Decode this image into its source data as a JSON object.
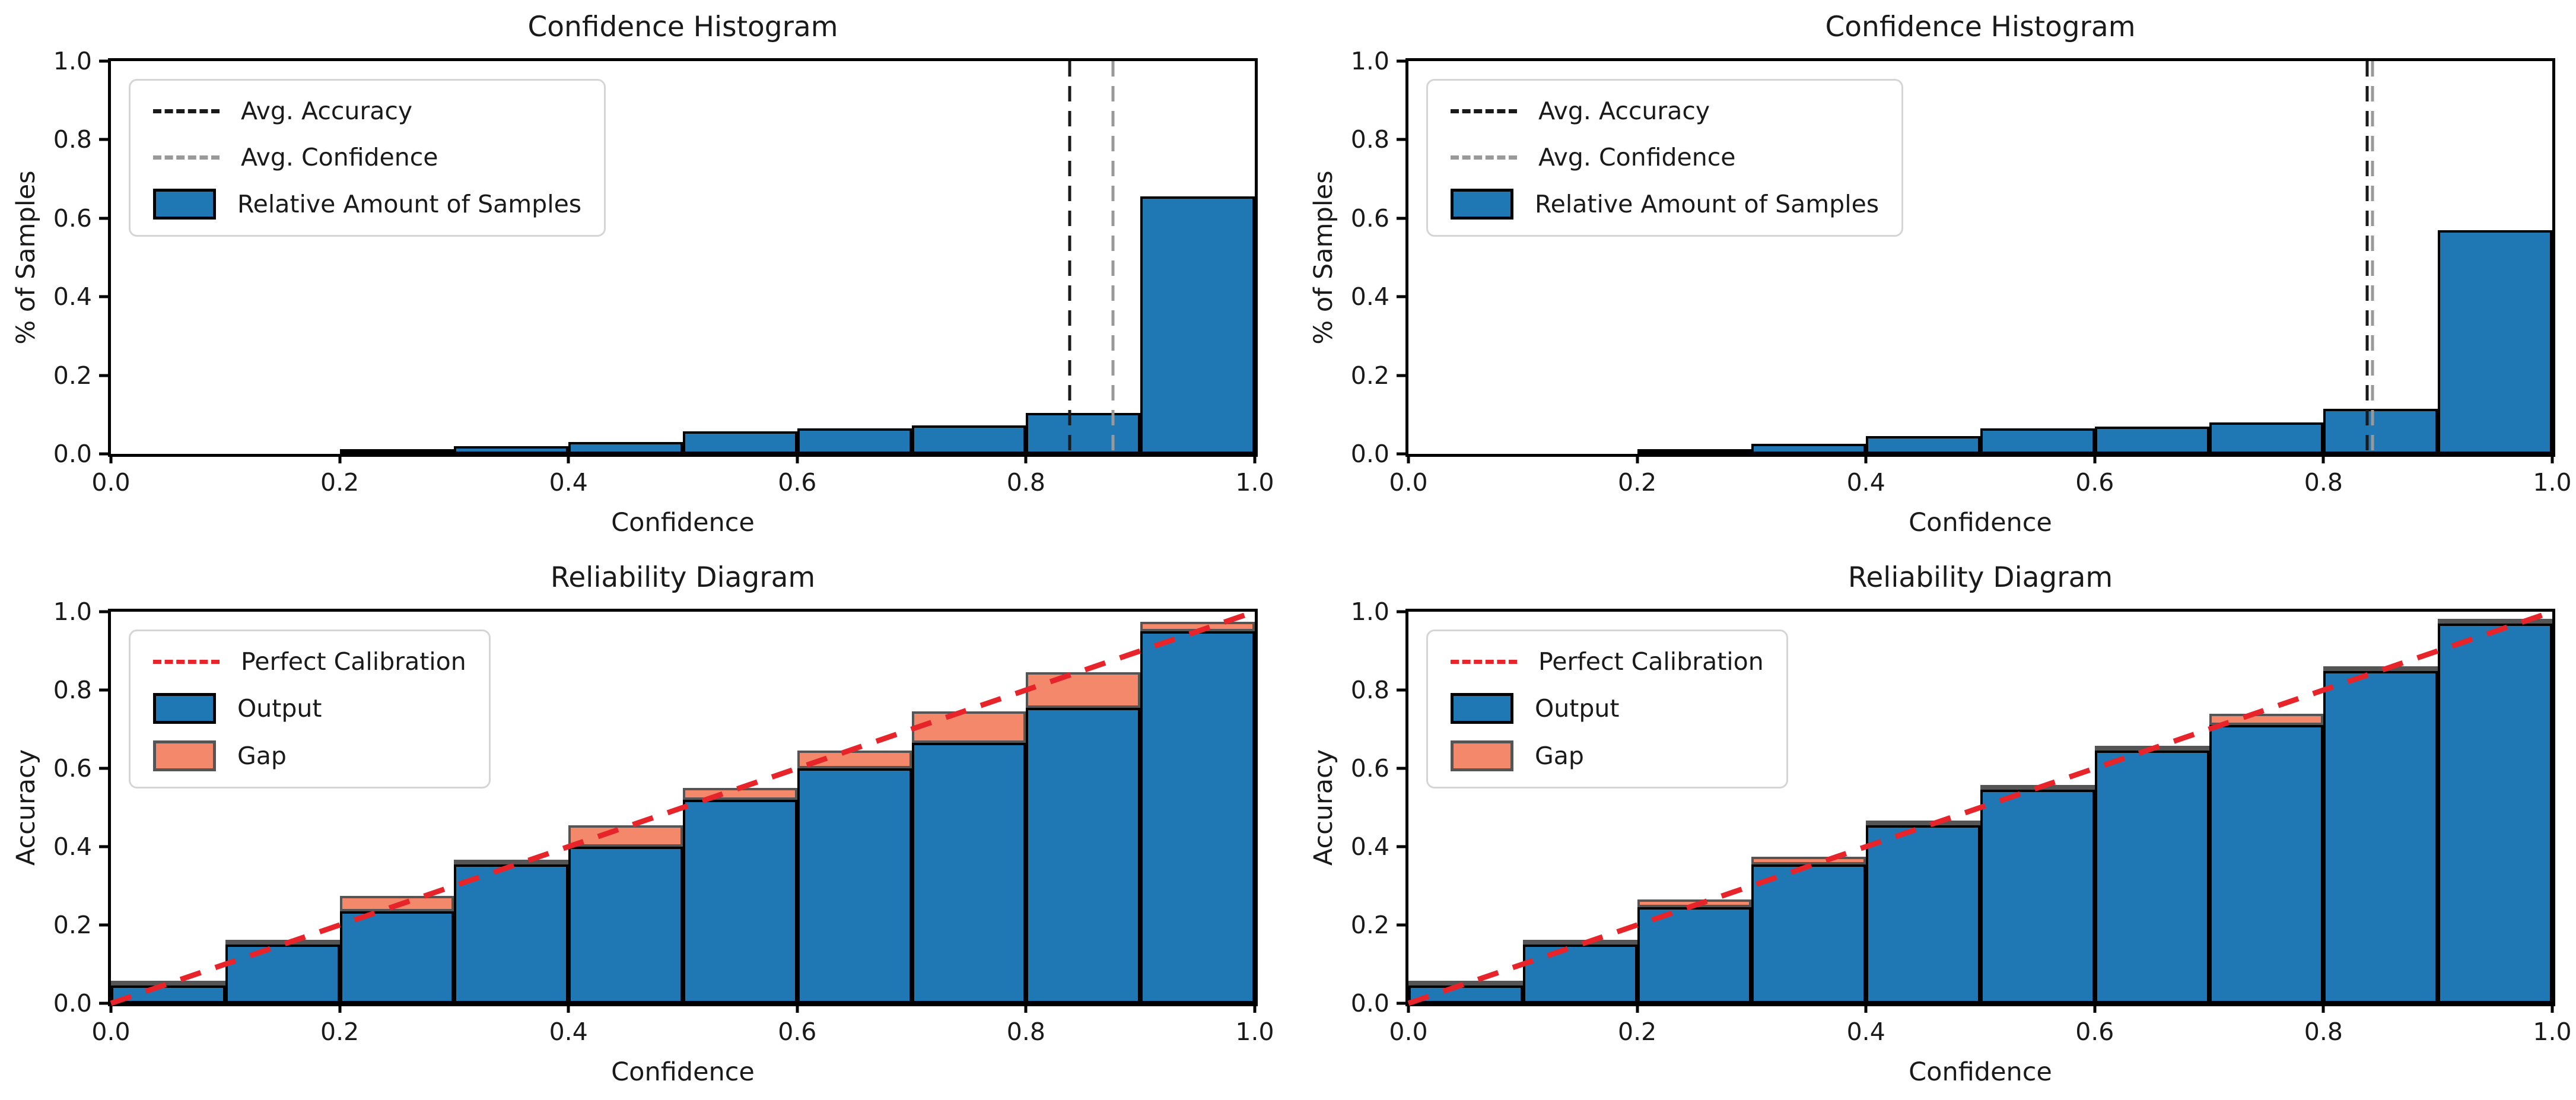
{
  "colors": {
    "bar_blue": "#1F77B4",
    "gap_salmon": "#F4886B",
    "gap_edge": "#555555",
    "perfect_calibration_red": "#E8242B",
    "avg_accuracy_black": "#1A1A1A",
    "avg_confidence_gray": "#999999",
    "legend_border": "#D5D5D5",
    "axis_black": "#000000"
  },
  "axes_ticks": {
    "labels": [
      "0.0",
      "0.2",
      "0.4",
      "0.6",
      "0.8",
      "1.0"
    ],
    "values": [
      0,
      0.2,
      0.4,
      0.6,
      0.8,
      1.0
    ]
  },
  "chart_data": [
    {
      "id": "tl",
      "type": "bar",
      "subtype": "confidence_histogram",
      "title": "Confidence Histogram",
      "xlabel": "Confidence",
      "ylabel": "% of Samples",
      "xlim": [
        0,
        1
      ],
      "ylim": [
        0,
        1
      ],
      "grid": false,
      "legend_position": "upper left",
      "legend": [
        "Avg. Accuracy",
        "Avg. Confidence",
        "Relative Amount of Samples"
      ],
      "bin_start": 0,
      "bin_width": 0.1,
      "categories": [
        "0.0-0.1",
        "0.1-0.2",
        "0.2-0.3",
        "0.3-0.4",
        "0.4-0.5",
        "0.5-0.6",
        "0.6-0.7",
        "0.7-0.8",
        "0.8-0.9",
        "0.9-1.0"
      ],
      "values": [
        0,
        0,
        0.005,
        0.02,
        0.03,
        0.057,
        0.065,
        0.073,
        0.105,
        0.655
      ],
      "avg_accuracy": 0.838,
      "avg_confidence": 0.876
    },
    {
      "id": "tr",
      "type": "bar",
      "subtype": "confidence_histogram",
      "title": "Confidence Histogram",
      "xlabel": "Confidence",
      "ylabel": "% of Samples",
      "xlim": [
        0,
        1
      ],
      "ylim": [
        0,
        1
      ],
      "grid": false,
      "legend_position": "upper left",
      "legend": [
        "Avg. Accuracy",
        "Avg. Confidence",
        "Relative Amount of Samples"
      ],
      "bin_start": 0,
      "bin_width": 0.1,
      "categories": [
        "0.0-0.1",
        "0.1-0.2",
        "0.2-0.3",
        "0.3-0.4",
        "0.4-0.5",
        "0.5-0.6",
        "0.6-0.7",
        "0.7-0.8",
        "0.8-0.9",
        "0.9-1.0"
      ],
      "values": [
        0,
        0,
        0.005,
        0.025,
        0.045,
        0.065,
        0.07,
        0.08,
        0.115,
        0.57
      ],
      "avg_accuracy": 0.838,
      "avg_confidence": 0.843
    },
    {
      "id": "bl",
      "type": "bar",
      "subtype": "reliability_diagram",
      "title": "Reliability Diagram",
      "xlabel": "Confidence",
      "ylabel": "Accuracy",
      "xlim": [
        0,
        1
      ],
      "ylim": [
        0,
        1
      ],
      "grid": false,
      "legend_position": "upper left",
      "legend": [
        "Perfect Calibration",
        "Output",
        "Gap"
      ],
      "bin_start": 0,
      "bin_width": 0.1,
      "categories": [
        "0.0-0.1",
        "0.1-0.2",
        "0.2-0.3",
        "0.3-0.4",
        "0.4-0.5",
        "0.5-0.6",
        "0.6-0.7",
        "0.7-0.8",
        "0.8-0.9",
        "0.9-1.0"
      ],
      "series": [
        {
          "name": "Output (accuracy)",
          "values": [
            0.045,
            0.15,
            0.235,
            0.355,
            0.4,
            0.52,
            0.6,
            0.665,
            0.755,
            0.95
          ]
        },
        {
          "name": "Gap top (confidence)",
          "values": [
            0.05,
            0.155,
            0.275,
            0.365,
            0.455,
            0.55,
            0.645,
            0.745,
            0.845,
            0.975
          ]
        }
      ],
      "perfect_calibration_line": {
        "from": [
          0,
          0
        ],
        "to": [
          1,
          1
        ]
      }
    },
    {
      "id": "br",
      "type": "bar",
      "subtype": "reliability_diagram",
      "title": "Reliability Diagram",
      "xlabel": "Confidence",
      "ylabel": "Accuracy",
      "xlim": [
        0,
        1
      ],
      "ylim": [
        0,
        1
      ],
      "grid": false,
      "legend_position": "upper left",
      "legend": [
        "Perfect Calibration",
        "Output",
        "Gap"
      ],
      "bin_start": 0,
      "bin_width": 0.1,
      "categories": [
        "0.0-0.1",
        "0.1-0.2",
        "0.2-0.3",
        "0.3-0.4",
        "0.4-0.5",
        "0.5-0.6",
        "0.6-0.7",
        "0.7-0.8",
        "0.8-0.9",
        "0.9-1.0"
      ],
      "series": [
        {
          "name": "Output (accuracy)",
          "values": [
            0.045,
            0.15,
            0.245,
            0.355,
            0.455,
            0.545,
            0.645,
            0.71,
            0.848,
            0.97
          ]
        },
        {
          "name": "Gap top (confidence)",
          "values": [
            0.05,
            0.155,
            0.265,
            0.375,
            0.465,
            0.555,
            0.655,
            0.74,
            0.855,
            0.978
          ]
        }
      ],
      "perfect_calibration_line": {
        "from": [
          0,
          0
        ],
        "to": [
          1,
          1
        ]
      }
    }
  ],
  "layout_note": "2x2 grid of matplotlib-style axes"
}
